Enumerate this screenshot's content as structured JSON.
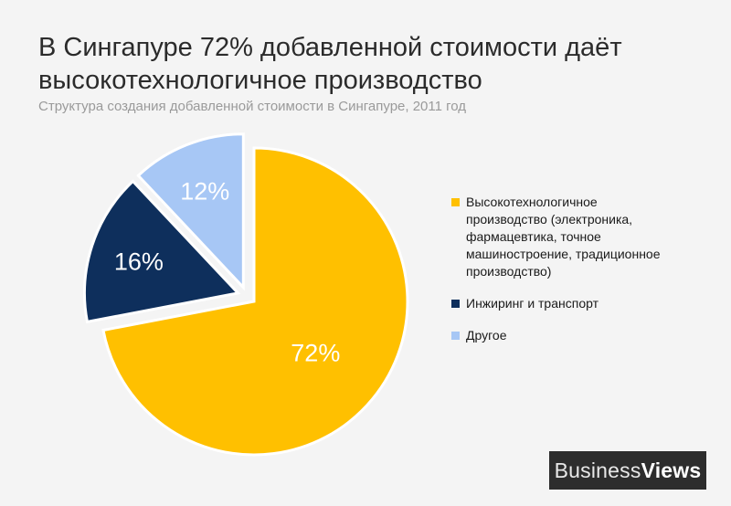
{
  "header": {
    "title": "В Сингапуре 72% добавленной стоимости даёт\nвысокотехнологичное производство",
    "subtitle": "Структура создания добавленной стоимости в Сингапуре, 2011 год"
  },
  "chart_data": {
    "type": "pie",
    "categories": [
      "Высокотехнологичное производство (электроника, фармацевтика, точное машиностроение, традиционное производство)",
      "Инжиринг и транспорт",
      "Другое"
    ],
    "values": [
      72,
      16,
      12
    ],
    "labels": [
      "72%",
      "16%",
      "12%"
    ],
    "colors": [
      "#ffc000",
      "#0e2f5c",
      "#a7c7f5"
    ],
    "label_colors": [
      "#ffffff",
      "#ffffff",
      "#ffffff"
    ],
    "legend_position": "right",
    "first_slice_exploded": false
  },
  "legend": {
    "items": [
      "Высокотехнологичное производство (электроника, фармацевтика, точное машиностроение, традиционное производство)",
      "Инжиринг и транспорт",
      "Другое"
    ]
  },
  "brand": {
    "part1": "Business",
    "part2": "Views"
  }
}
